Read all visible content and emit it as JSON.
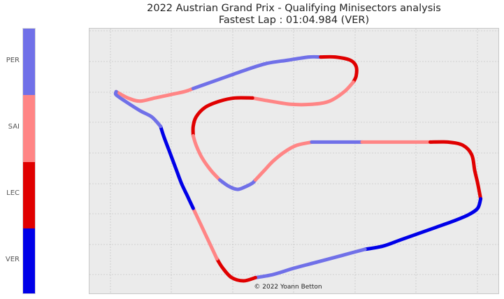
{
  "chart_data": {
    "type": "line",
    "title": "2022 Austrian Grand Prix - Qualifying Minisectors analysis",
    "subtitle": "Fastest Lap : 01:04.984 (VER)",
    "credit": "© 2022 Yoann Betton",
    "grid": true,
    "legend_placement": "left",
    "drivers": [
      {
        "name": "PER",
        "color": "#7070e8"
      },
      {
        "name": "SAI",
        "color": "#ff8585"
      },
      {
        "name": "LEC",
        "color": "#e00000"
      },
      {
        "name": "VER",
        "color": "#0000e8"
      }
    ],
    "track": [
      {
        "driver": "SAI",
        "points": [
          [
            0.04,
            0.72
          ],
          [
            0.08,
            0.7
          ],
          [
            0.12,
            0.69
          ],
          [
            0.17,
            0.7
          ],
          [
            0.22,
            0.71
          ],
          [
            0.27,
            0.72
          ],
          [
            0.3,
            0.73
          ]
        ]
      },
      {
        "driver": "PER",
        "points": [
          [
            0.3,
            0.73
          ],
          [
            0.36,
            0.75
          ],
          [
            0.42,
            0.77
          ],
          [
            0.48,
            0.79
          ],
          [
            0.55,
            0.81
          ],
          [
            0.62,
            0.82
          ],
          [
            0.69,
            0.83
          ],
          [
            0.73,
            0.83
          ]
        ]
      },
      {
        "driver": "LEC",
        "points": [
          [
            0.73,
            0.83
          ],
          [
            0.78,
            0.83
          ],
          [
            0.83,
            0.82
          ],
          [
            0.85,
            0.8
          ],
          [
            0.85,
            0.77
          ],
          [
            0.84,
            0.75
          ]
        ]
      },
      {
        "driver": "SAI",
        "points": [
          [
            0.84,
            0.75
          ],
          [
            0.81,
            0.72
          ],
          [
            0.76,
            0.69
          ],
          [
            0.7,
            0.68
          ],
          [
            0.63,
            0.68
          ],
          [
            0.56,
            0.69
          ],
          [
            0.5,
            0.7
          ]
        ]
      },
      {
        "driver": "LEC",
        "points": [
          [
            0.5,
            0.7
          ],
          [
            0.44,
            0.7
          ],
          [
            0.39,
            0.69
          ],
          [
            0.34,
            0.67
          ],
          [
            0.31,
            0.64
          ],
          [
            0.3,
            0.61
          ],
          [
            0.3,
            0.58
          ]
        ]
      },
      {
        "driver": "SAI",
        "points": [
          [
            0.3,
            0.58
          ],
          [
            0.31,
            0.55
          ],
          [
            0.33,
            0.51
          ],
          [
            0.36,
            0.47
          ],
          [
            0.39,
            0.44
          ]
        ]
      },
      {
        "driver": "PER",
        "points": [
          [
            0.39,
            0.44
          ],
          [
            0.42,
            0.42
          ],
          [
            0.45,
            0.41
          ],
          [
            0.48,
            0.42
          ],
          [
            0.5,
            0.43
          ],
          [
            0.51,
            0.44
          ]
        ]
      },
      {
        "driver": "SAI",
        "points": [
          [
            0.51,
            0.44
          ],
          [
            0.54,
            0.47
          ],
          [
            0.57,
            0.5
          ],
          [
            0.61,
            0.53
          ],
          [
            0.65,
            0.55
          ],
          [
            0.7,
            0.56
          ]
        ]
      },
      {
        "driver": "PER",
        "points": [
          [
            0.7,
            0.56
          ],
          [
            0.76,
            0.56
          ],
          [
            0.82,
            0.56
          ],
          [
            0.87,
            0.56
          ]
        ]
      },
      {
        "driver": "SAI",
        "points": [
          [
            0.87,
            0.56
          ],
          [
            0.94,
            0.56
          ],
          [
            1.0,
            0.56
          ],
          [
            1.06,
            0.56
          ],
          [
            1.1,
            0.56
          ]
        ]
      },
      {
        "driver": "LEC",
        "points": [
          [
            1.1,
            0.56
          ],
          [
            1.16,
            0.56
          ],
          [
            1.21,
            0.55
          ],
          [
            1.24,
            0.52
          ],
          [
            1.25,
            0.47
          ],
          [
            1.26,
            0.43
          ],
          [
            1.27,
            0.38
          ]
        ]
      },
      {
        "driver": "VER",
        "points": [
          [
            1.27,
            0.38
          ],
          [
            1.26,
            0.35
          ],
          [
            1.23,
            0.33
          ],
          [
            1.18,
            0.31
          ],
          [
            1.12,
            0.29
          ],
          [
            1.06,
            0.27
          ],
          [
            1.0,
            0.25
          ],
          [
            0.94,
            0.23
          ],
          [
            0.88,
            0.22
          ]
        ]
      },
      {
        "driver": "PER",
        "points": [
          [
            0.88,
            0.22
          ],
          [
            0.8,
            0.2
          ],
          [
            0.72,
            0.18
          ],
          [
            0.64,
            0.16
          ],
          [
            0.57,
            0.14
          ],
          [
            0.51,
            0.13
          ]
        ]
      },
      {
        "driver": "LEC",
        "points": [
          [
            0.51,
            0.13
          ],
          [
            0.47,
            0.12
          ],
          [
            0.43,
            0.13
          ],
          [
            0.4,
            0.16
          ],
          [
            0.38,
            0.19
          ]
        ]
      },
      {
        "driver": "SAI",
        "points": [
          [
            0.38,
            0.19
          ],
          [
            0.36,
            0.23
          ],
          [
            0.34,
            0.27
          ],
          [
            0.32,
            0.31
          ],
          [
            0.3,
            0.35
          ]
        ]
      },
      {
        "driver": "VER",
        "points": [
          [
            0.3,
            0.35
          ],
          [
            0.28,
            0.39
          ],
          [
            0.26,
            0.43
          ],
          [
            0.24,
            0.48
          ],
          [
            0.22,
            0.53
          ],
          [
            0.2,
            0.58
          ],
          [
            0.19,
            0.61
          ]
        ]
      },
      {
        "driver": "PER",
        "points": [
          [
            0.19,
            0.61
          ],
          [
            0.16,
            0.64
          ],
          [
            0.12,
            0.66
          ],
          [
            0.07,
            0.69
          ],
          [
            0.04,
            0.71
          ],
          [
            0.04,
            0.72
          ]
        ]
      }
    ],
    "xlim": [
      -0.05,
      1.33
    ],
    "ylim": [
      0.08,
      0.92
    ]
  }
}
